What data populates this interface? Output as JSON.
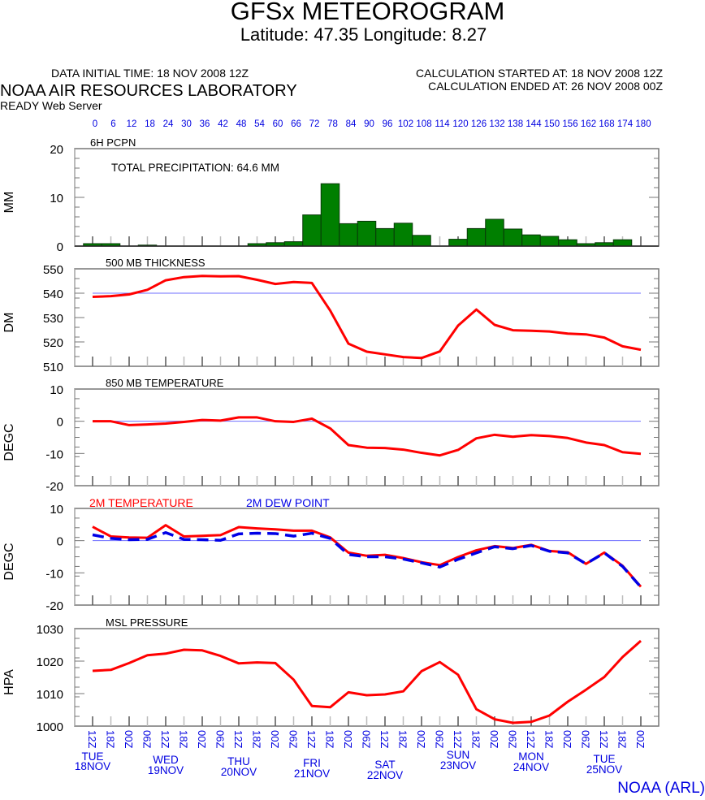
{
  "header": {
    "title": "GFSx METEOROGRAM",
    "subtitle": "Latitude: 47.35 Longitude:   8.27",
    "data_initial_time": "DATA INITIAL TIME: 18 NOV 2008 12Z",
    "lab_name": "NOAA AIR RESOURCES LABORATORY",
    "server": "READY Web Server",
    "calc_started": "CALCULATION STARTED AT: 18 NOV 2008 12Z",
    "calc_ended": "CALCULATION ENDED AT: 26 NOV 2008 00Z"
  },
  "footer": {
    "credit": "NOAA (ARL)"
  },
  "colors": {
    "precip_bar": "#007f00",
    "line_red": "#ff0000",
    "dew_blue": "#0000e6",
    "ref_line": "#6f6fff",
    "axis_label_blue": "#0000e0"
  },
  "chart_data": [
    {
      "type": "bar",
      "title": "6H PCPN",
      "annotation": "TOTAL PRECIPITATION:  64.6 MM",
      "ylabel": "MM",
      "ylim": [
        0,
        20
      ],
      "yticks": [
        0,
        10,
        20
      ],
      "x_hours": [
        0,
        6,
        12,
        18,
        24,
        30,
        36,
        42,
        48,
        54,
        60,
        66,
        72,
        78,
        84,
        90,
        96,
        102,
        108,
        114,
        120,
        126,
        132,
        138,
        144,
        150,
        156,
        162,
        168,
        174
      ],
      "values": [
        0.5,
        0.5,
        0,
        0.2,
        0,
        0,
        0,
        0,
        0,
        0.5,
        0.7,
        0.9,
        6.4,
        12.8,
        4.6,
        5.1,
        3.6,
        4.7,
        2.2,
        0,
        1.4,
        3.6,
        5.5,
        3.5,
        2.3,
        2.0,
        1.3,
        0.5,
        0.7,
        1.3
      ]
    },
    {
      "type": "line",
      "title": "500 MB  THICKNESS",
      "ylabel": "DM",
      "ylim": [
        510,
        550
      ],
      "yticks": [
        510,
        520,
        530,
        540,
        550
      ],
      "reference_line": 540,
      "series": [
        {
          "name": "500 MB THICKNESS",
          "values": [
            538.5,
            538.8,
            539.5,
            541.4,
            545.3,
            546.6,
            547.1,
            546.9,
            547.0,
            545.5,
            543.8,
            544.6,
            544.2,
            532.9,
            519.3,
            516.0,
            514.9,
            513.8,
            513.4,
            516.1,
            526.7,
            533.3,
            527.0,
            524.8,
            524.6,
            524.3,
            523.4,
            523.1,
            521.8,
            518.2,
            516.8
          ]
        }
      ]
    },
    {
      "type": "line",
      "title": "850 MB  TEMPERATURE",
      "ylabel": "DEGC",
      "ylim": [
        -20,
        10
      ],
      "yticks": [
        -20,
        -10,
        0,
        10
      ],
      "reference_line": 0,
      "series": [
        {
          "name": "850 MB TEMPERATURE",
          "values": [
            0,
            0,
            -1.2,
            -1.0,
            -0.7,
            -0.2,
            0.4,
            0.2,
            1.2,
            1.2,
            0,
            -0.2,
            0.8,
            -2.2,
            -7.4,
            -8.2,
            -8.3,
            -8.8,
            -9.8,
            -10.6,
            -8.9,
            -5.3,
            -4.2,
            -4.8,
            -4.3,
            -4.6,
            -5.2,
            -6.6,
            -7.4,
            -9.6,
            -10.1
          ]
        }
      ]
    },
    {
      "type": "line",
      "title": "",
      "legend": [
        "2M TEMPERATURE",
        "2M   DEW POINT"
      ],
      "legend_placement": "top",
      "ylabel": "DEGC",
      "ylim": [
        -20,
        10
      ],
      "yticks": [
        -20,
        -10,
        0,
        10
      ],
      "reference_line": 0,
      "series": [
        {
          "name": "2M TEMPERATURE",
          "values": [
            4.3,
            1.3,
            1.0,
            0.9,
            4.8,
            1.3,
            1.5,
            1.7,
            4.2,
            3.8,
            3.5,
            3.1,
            3.1,
            1.0,
            -3.7,
            -4.7,
            -4.4,
            -5.4,
            -6.7,
            -7.6,
            -5.1,
            -3.0,
            -1.7,
            -2.3,
            -1.3,
            -3.2,
            -3.6,
            -7.2,
            -3.7,
            -7.8,
            -14.3
          ]
        },
        {
          "name": "2M DEW POINT",
          "values": [
            1.8,
            0.7,
            0.3,
            0.4,
            2.5,
            0.4,
            0.3,
            0.1,
            2.1,
            2.3,
            2.2,
            1.4,
            2.3,
            0.7,
            -4.3,
            -5.0,
            -5.0,
            -5.7,
            -6.9,
            -8.2,
            -5.8,
            -3.8,
            -1.9,
            -2.5,
            -1.5,
            -3.3,
            -3.8,
            -7.2,
            -3.8,
            -8.0,
            -14.4
          ]
        }
      ]
    },
    {
      "type": "line",
      "title": "MSL PRESSURE",
      "ylabel": "HPA",
      "ylim": [
        1000,
        1030
      ],
      "yticks": [
        1000,
        1010,
        1020,
        1030
      ],
      "series": [
        {
          "name": "MSL PRESSURE",
          "values": [
            1017.0,
            1017.3,
            1019.4,
            1021.8,
            1022.3,
            1023.5,
            1023.3,
            1021.6,
            1019.3,
            1019.6,
            1019.4,
            1014.3,
            1006.2,
            1005.8,
            1010.4,
            1009.5,
            1009.75,
            1010.7,
            1016.9,
            1019.7,
            1015.8,
            1005.2,
            1002.1,
            1001.0,
            1001.3,
            1003.25,
            1007.5,
            1011.2,
            1015.1,
            1021.25,
            1026.25
          ]
        }
      ]
    }
  ],
  "x_axis": {
    "forecast_hours": [
      0,
      6,
      12,
      18,
      24,
      30,
      36,
      42,
      48,
      54,
      60,
      66,
      72,
      78,
      84,
      90,
      96,
      102,
      108,
      114,
      120,
      126,
      132,
      138,
      144,
      150,
      156,
      162,
      168,
      174,
      180
    ],
    "utc_labels": [
      "12Z",
      "18Z",
      "00Z",
      "06Z",
      "12Z",
      "18Z",
      "00Z",
      "06Z",
      "12Z",
      "18Z",
      "00Z",
      "06Z",
      "12Z",
      "18Z",
      "00Z",
      "06Z",
      "12Z",
      "18Z",
      "00Z",
      "06Z",
      "12Z",
      "18Z",
      "00Z",
      "06Z",
      "12Z",
      "18Z",
      "00Z",
      "06Z",
      "12Z",
      "18Z",
      "00Z"
    ],
    "days": [
      {
        "day": "TUE",
        "date": "18NOV"
      },
      {
        "day": "WED",
        "date": "19NOV"
      },
      {
        "day": "THU",
        "date": "20NOV"
      },
      {
        "day": "FRI",
        "date": "21NOV"
      },
      {
        "day": "SAT",
        "date": "22NOV"
      },
      {
        "day": "SUN",
        "date": "23NOV"
      },
      {
        "day": "MON",
        "date": "24NOV"
      },
      {
        "day": "TUE",
        "date": "25NOV"
      }
    ]
  }
}
